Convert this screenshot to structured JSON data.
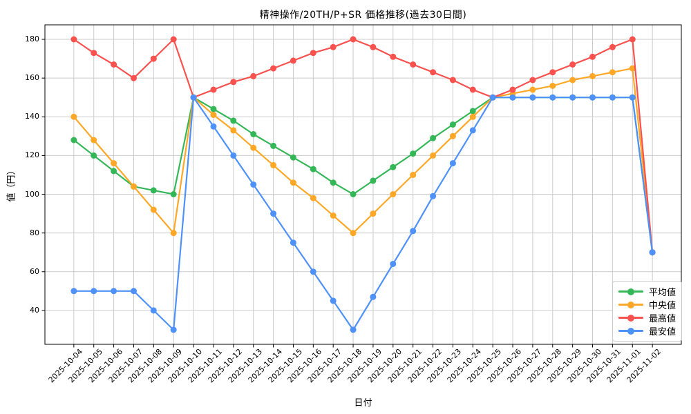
{
  "title": "精神操作/20TH/P+SR 価格推移(過去30日間)",
  "chart_data": {
    "type": "line",
    "title": "精神操作/20TH/P+SR 価格推移(過去30日間)",
    "xlabel": "日付",
    "ylabel": "値（円）",
    "grid": true,
    "grid_color": "#cccccc",
    "background": "#ffffff",
    "legend_position": "lower right",
    "ylim": [
      22.5,
      187.5
    ],
    "yticks": [
      40,
      60,
      80,
      100,
      120,
      140,
      160,
      180
    ],
    "x": [
      "2025-10-04",
      "2025-10-05",
      "2025-10-06",
      "2025-10-07",
      "2025-10-08",
      "2025-10-09",
      "2025-10-10",
      "2025-10-11",
      "2025-10-12",
      "2025-10-13",
      "2025-10-14",
      "2025-10-15",
      "2025-10-16",
      "2025-10-17",
      "2025-10-18",
      "2025-10-19",
      "2025-10-20",
      "2025-10-21",
      "2025-10-22",
      "2025-10-23",
      "2025-10-24",
      "2025-10-25",
      "2025-10-26",
      "2025-10-27",
      "2025-10-28",
      "2025-10-29",
      "2025-10-30",
      "2025-10-31",
      "2025-11-01",
      "2025-11-02"
    ],
    "series": [
      {
        "key": "average",
        "name": "平均値",
        "color": "#34b857",
        "values": [
          128,
          120,
          112,
          104,
          102,
          100,
          150,
          144,
          138,
          131,
          125,
          119,
          113,
          106,
          100,
          107,
          114,
          121,
          129,
          136,
          143,
          150,
          150,
          150,
          150,
          150,
          150,
          150,
          150,
          70
        ]
      },
      {
        "key": "median",
        "name": "中央値",
        "color": "#ffa726",
        "values": [
          140,
          128,
          116,
          104,
          92,
          80,
          150,
          141,
          133,
          124,
          115,
          106,
          98,
          89,
          80,
          90,
          100,
          110,
          120,
          130,
          140,
          150,
          152,
          154,
          156,
          159,
          161,
          163,
          165,
          70
        ]
      },
      {
        "key": "max",
        "name": "最高値",
        "color": "#f8514e",
        "values": [
          180,
          173,
          167,
          160,
          170,
          180,
          150,
          154,
          158,
          161,
          165,
          169,
          173,
          176,
          180,
          176,
          171,
          167,
          163,
          159,
          154,
          150,
          154,
          159,
          163,
          167,
          171,
          176,
          180,
          70
        ]
      },
      {
        "key": "min",
        "name": "最安値",
        "color": "#4e91f9",
        "values": [
          50,
          50,
          50,
          50,
          40,
          30,
          150,
          135,
          120,
          105,
          90,
          75,
          60,
          45,
          30,
          47,
          64,
          81,
          99,
          116,
          133,
          150,
          150,
          150,
          150,
          150,
          150,
          150,
          150,
          70
        ]
      }
    ]
  }
}
